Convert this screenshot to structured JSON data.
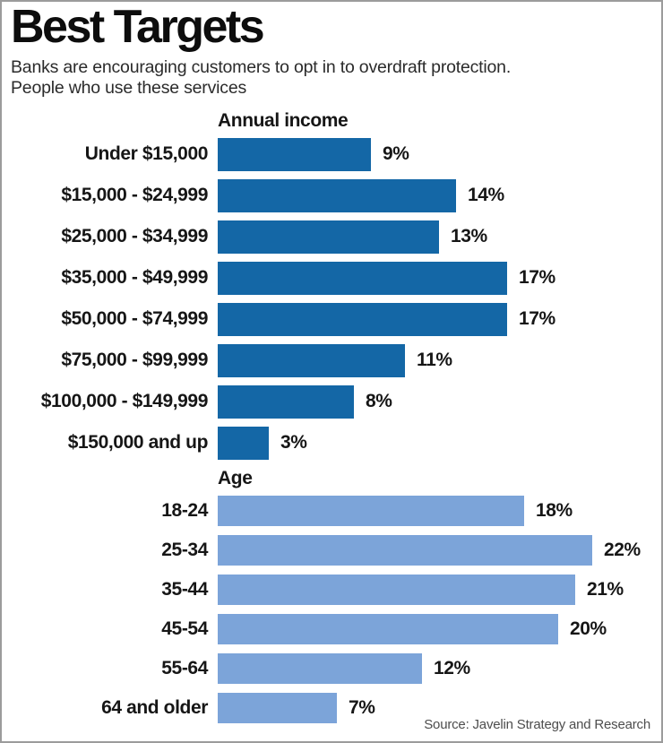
{
  "header": {
    "title": "Best Targets",
    "subtitle_line1": "Banks are encouraging customers to opt in to overdraft protection.",
    "subtitle_line2": "People who use these services"
  },
  "source": "Source: Javelin Strategy and Research",
  "colors": {
    "income_bar": "#1467a6",
    "age_bar": "#7ca4d9",
    "border": "#9b9b9b",
    "text": "#161616",
    "source_text": "#4d4d4d"
  },
  "chart_data": [
    {
      "type": "bar",
      "title": "Annual income",
      "orientation": "horizontal",
      "unit": "%",
      "categories": [
        "Under $15,000",
        "$15,000 - $24,999",
        "$25,000 - $34,999",
        "$35,000 - $49,999",
        "$50,000 - $74,999",
        "$75,000 - $99,999",
        "$100,000 - $149,999",
        "$150,000 and up"
      ],
      "values": [
        9,
        14,
        13,
        17,
        17,
        11,
        8,
        3
      ],
      "labels": [
        "9%",
        "14%",
        "13%",
        "17%",
        "17%",
        "11%",
        "8%",
        "3%"
      ],
      "bar_color": "#1467a6",
      "xlim": [
        0,
        25
      ],
      "grid": false,
      "legend": false
    },
    {
      "type": "bar",
      "title": "Age",
      "orientation": "horizontal",
      "unit": "%",
      "categories": [
        "18-24",
        "25-34",
        "35-44",
        "45-54",
        "55-64",
        "64 and older"
      ],
      "values": [
        18,
        22,
        21,
        20,
        12,
        7
      ],
      "labels": [
        "18%",
        "22%",
        "21%",
        "20%",
        "12%",
        "7%"
      ],
      "bar_color": "#7ca4d9",
      "xlim": [
        0,
        25
      ],
      "grid": false,
      "legend": false
    }
  ]
}
